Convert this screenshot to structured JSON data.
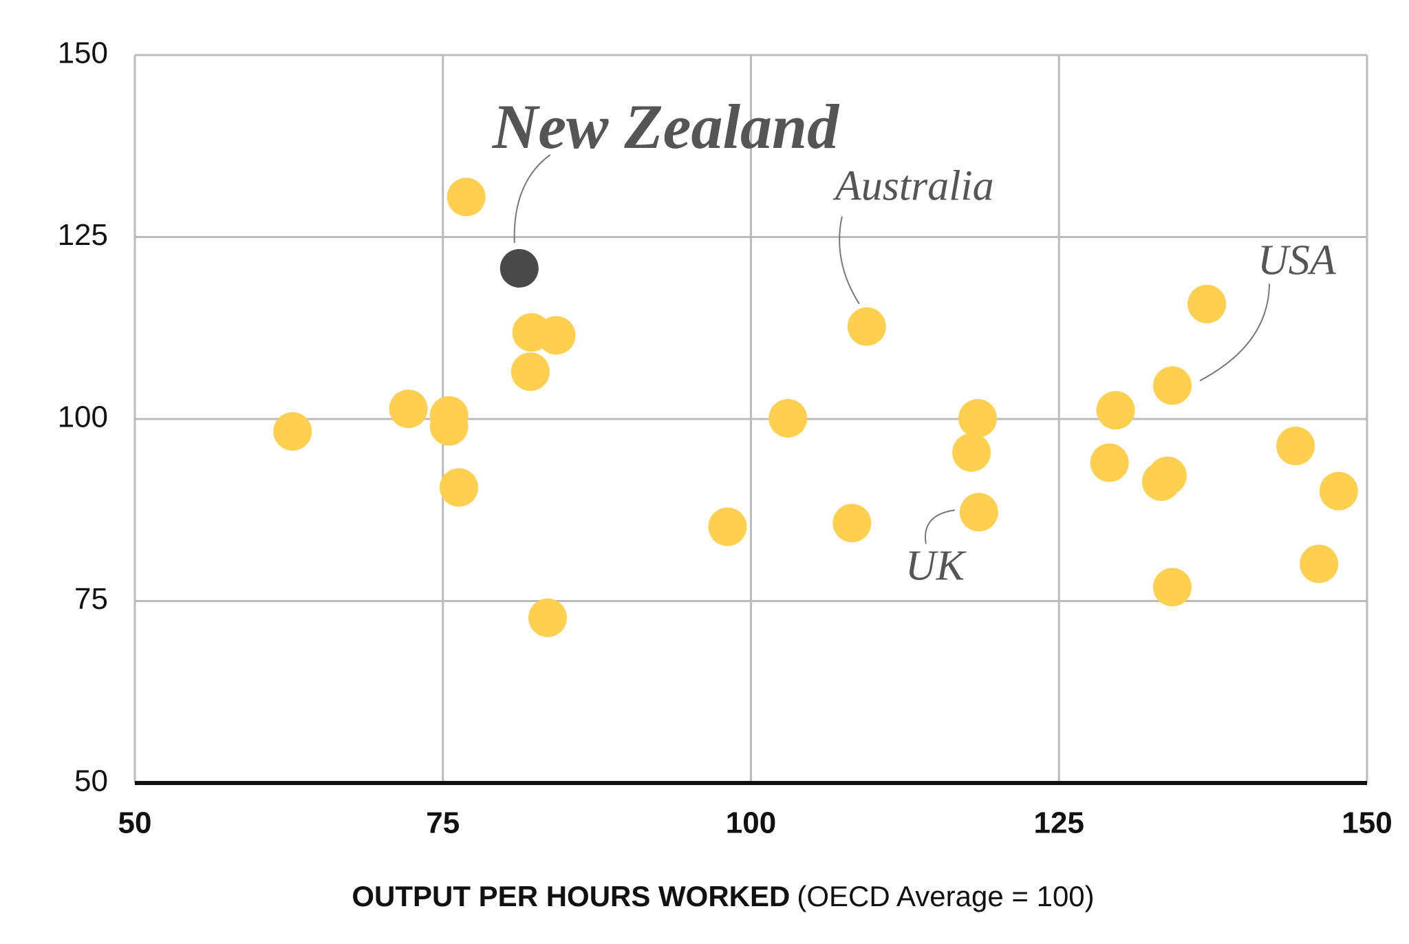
{
  "chart_data": {
    "type": "scatter",
    "xlabel": "OUTPUT PER HOURS WORKED",
    "xlabel_note": "(OECD Average = 100)",
    "x": [
      62.8,
      72.2,
      75.5,
      75.5,
      76.3,
      76.9,
      81.2,
      82.2,
      84.2,
      82.1,
      83.5,
      98.1,
      103.0,
      108.2,
      109.4,
      118.4,
      117.9,
      118.5,
      129.6,
      129.1,
      133.3,
      133.8,
      134.2,
      134.2,
      137.0,
      144.2,
      146.1,
      147.7
    ],
    "values": [
      98.3,
      101.4,
      100.5,
      99.0,
      90.6,
      130.5,
      120.7,
      111.9,
      111.5,
      106.5,
      72.7,
      85.2,
      100.1,
      85.7,
      112.7,
      100.1,
      95.4,
      87.2,
      101.2,
      94.0,
      91.4,
      92.2,
      104.6,
      76.9,
      115.8,
      96.3,
      80.1,
      90.1
    ],
    "color": "#ffcf4f",
    "highlight_color": "#4a4a4a",
    "highlight": 6,
    "annotations": [
      {
        "text": "New Zealand",
        "point": 6
      },
      {
        "text": "Australia",
        "point": 14
      },
      {
        "text": "USA",
        "point": 22
      },
      {
        "text": "UK",
        "point": 17
      }
    ],
    "xlim": [
      50,
      150
    ],
    "xticks": [
      50,
      75,
      100,
      125,
      150
    ],
    "ylim": [
      50,
      150
    ],
    "yticks": [
      50,
      75,
      100,
      125,
      150
    ],
    "grid": true
  }
}
